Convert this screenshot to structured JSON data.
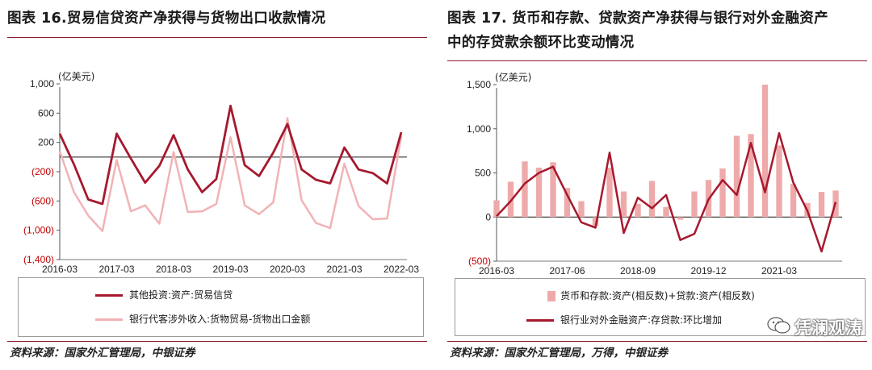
{
  "colors": {
    "dark_red": "#a6192e",
    "light_pink": "#f1b3b6",
    "bar_pink": "#eeaaaa",
    "zero_line": "#1a1a1a",
    "neg_label": "#c00000",
    "frame": "#8c1b2b"
  },
  "left": {
    "title": "图表 16.贸易信贷资产净获得与货物出口收款情况",
    "legend": [
      "其他投资:资产:贸易信贷",
      "银行代客涉外收入:货物贸易-货物出口金额"
    ],
    "source": "资料来源：国家外汇管理局，中银证券"
  },
  "right": {
    "title_line1": "图表 17. 货币和存款、贷款资产净获得与银行对外金融资产",
    "title_line2": "中的存贷款余额环比变动情况",
    "legend": [
      "货币和存款:资产(相反数)+贷款:资产(相反数)",
      "银行业对外金融资产:存贷款:环比增加"
    ],
    "source": "资料来源：国家外汇管理局，万得，中银证券"
  },
  "watermark": {
    "text": "凭澜观涛",
    "icon": "wechat-icon"
  },
  "chart_data": [
    {
      "type": "line",
      "unit_label": "(亿美元)",
      "ylim": [
        -1400,
        1000
      ],
      "yticks": [
        1000,
        600,
        200,
        -200,
        -600,
        -1000,
        -1400
      ],
      "ytick_labels": [
        "1,000",
        "600",
        "200",
        "(200)",
        "(600)",
        "(1,000)",
        "(1,400)"
      ],
      "x_tick_labels": [
        "2016-03",
        "2017-03",
        "2018-03",
        "2019-03",
        "2020-03",
        "2021-03",
        "2022-03"
      ],
      "x_tick_index": [
        0,
        4,
        8,
        12,
        16,
        20,
        24
      ],
      "n_points": 25,
      "grid": false,
      "series": [
        {
          "name": "其他投资:资产:贸易信贷",
          "color": "#a6192e",
          "values": [
            320,
            -100,
            -580,
            -640,
            320,
            -20,
            -350,
            -120,
            300,
            -170,
            -480,
            -300,
            700,
            -110,
            -260,
            60,
            450,
            -170,
            -310,
            -360,
            130,
            -170,
            -220,
            -360,
            340
          ]
        },
        {
          "name": "银行代客涉外收入:货物贸易-货物出口金额",
          "color": "#f1b3b6",
          "values": [
            80,
            -480,
            -800,
            -1010,
            -40,
            -740,
            -660,
            -910,
            70,
            -750,
            -740,
            -640,
            270,
            -660,
            -780,
            -620,
            530,
            -590,
            -900,
            -970,
            -90,
            -670,
            -850,
            -840,
            290
          ]
        }
      ]
    },
    {
      "type": "bar",
      "unit_label": "(亿美元)",
      "ylim": [
        -500,
        1500
      ],
      "yticks": [
        1500,
        1000,
        500,
        0,
        -500
      ],
      "ytick_labels": [
        "1,500",
        "1,000",
        "500",
        "0",
        "(500)"
      ],
      "x_tick_labels": [
        "2016-03",
        "2017-06",
        "2018-09",
        "2019-12",
        "2021-03"
      ],
      "x_tick_index": [
        0,
        5,
        10,
        15,
        20
      ],
      "n_points": 25,
      "grid": false,
      "series": [
        {
          "name": "货币和存款:资产(相反数)+贷款:资产(相反数)",
          "kind": "bar",
          "color": "#eeaaaa",
          "values": [
            190,
            400,
            630,
            560,
            620,
            330,
            180,
            -100,
            560,
            290,
            150,
            410,
            115,
            -30,
            290,
            420,
            550,
            920,
            940,
            1500,
            810,
            375,
            160,
            285,
            300
          ]
        },
        {
          "name": "银行业对外金融资产:存贷款:环比增加",
          "kind": "line",
          "color": "#a6192e",
          "values": [
            10,
            180,
            380,
            500,
            570,
            250,
            -60,
            -120,
            730,
            -180,
            220,
            100,
            250,
            -260,
            -190,
            200,
            420,
            250,
            840,
            280,
            950,
            390,
            70,
            -390,
            170
          ]
        }
      ]
    }
  ]
}
